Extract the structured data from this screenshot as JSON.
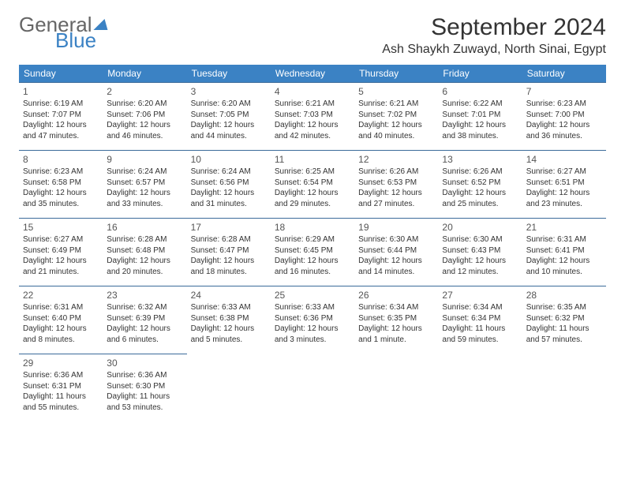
{
  "logo": {
    "line1": "General",
    "line2": "Blue"
  },
  "title": "September 2024",
  "location": "Ash Shaykh Zuwayd, North Sinai, Egypt",
  "colors": {
    "header_bg": "#3b82c4",
    "header_fg": "#ffffff",
    "cell_border": "#3b6b9a",
    "text": "#333333",
    "background": "#ffffff"
  },
  "days_of_week": [
    "Sunday",
    "Monday",
    "Tuesday",
    "Wednesday",
    "Thursday",
    "Friday",
    "Saturday"
  ],
  "calendar": {
    "type": "table",
    "columns": 7,
    "rows": 5,
    "start_offset": 0,
    "days": [
      {
        "n": 1,
        "sunrise": "6:19 AM",
        "sunset": "7:07 PM",
        "daylight": "12 hours and 47 minutes."
      },
      {
        "n": 2,
        "sunrise": "6:20 AM",
        "sunset": "7:06 PM",
        "daylight": "12 hours and 46 minutes."
      },
      {
        "n": 3,
        "sunrise": "6:20 AM",
        "sunset": "7:05 PM",
        "daylight": "12 hours and 44 minutes."
      },
      {
        "n": 4,
        "sunrise": "6:21 AM",
        "sunset": "7:03 PM",
        "daylight": "12 hours and 42 minutes."
      },
      {
        "n": 5,
        "sunrise": "6:21 AM",
        "sunset": "7:02 PM",
        "daylight": "12 hours and 40 minutes."
      },
      {
        "n": 6,
        "sunrise": "6:22 AM",
        "sunset": "7:01 PM",
        "daylight": "12 hours and 38 minutes."
      },
      {
        "n": 7,
        "sunrise": "6:23 AM",
        "sunset": "7:00 PM",
        "daylight": "12 hours and 36 minutes."
      },
      {
        "n": 8,
        "sunrise": "6:23 AM",
        "sunset": "6:58 PM",
        "daylight": "12 hours and 35 minutes."
      },
      {
        "n": 9,
        "sunrise": "6:24 AM",
        "sunset": "6:57 PM",
        "daylight": "12 hours and 33 minutes."
      },
      {
        "n": 10,
        "sunrise": "6:24 AM",
        "sunset": "6:56 PM",
        "daylight": "12 hours and 31 minutes."
      },
      {
        "n": 11,
        "sunrise": "6:25 AM",
        "sunset": "6:54 PM",
        "daylight": "12 hours and 29 minutes."
      },
      {
        "n": 12,
        "sunrise": "6:26 AM",
        "sunset": "6:53 PM",
        "daylight": "12 hours and 27 minutes."
      },
      {
        "n": 13,
        "sunrise": "6:26 AM",
        "sunset": "6:52 PM",
        "daylight": "12 hours and 25 minutes."
      },
      {
        "n": 14,
        "sunrise": "6:27 AM",
        "sunset": "6:51 PM",
        "daylight": "12 hours and 23 minutes."
      },
      {
        "n": 15,
        "sunrise": "6:27 AM",
        "sunset": "6:49 PM",
        "daylight": "12 hours and 21 minutes."
      },
      {
        "n": 16,
        "sunrise": "6:28 AM",
        "sunset": "6:48 PM",
        "daylight": "12 hours and 20 minutes."
      },
      {
        "n": 17,
        "sunrise": "6:28 AM",
        "sunset": "6:47 PM",
        "daylight": "12 hours and 18 minutes."
      },
      {
        "n": 18,
        "sunrise": "6:29 AM",
        "sunset": "6:45 PM",
        "daylight": "12 hours and 16 minutes."
      },
      {
        "n": 19,
        "sunrise": "6:30 AM",
        "sunset": "6:44 PM",
        "daylight": "12 hours and 14 minutes."
      },
      {
        "n": 20,
        "sunrise": "6:30 AM",
        "sunset": "6:43 PM",
        "daylight": "12 hours and 12 minutes."
      },
      {
        "n": 21,
        "sunrise": "6:31 AM",
        "sunset": "6:41 PM",
        "daylight": "12 hours and 10 minutes."
      },
      {
        "n": 22,
        "sunrise": "6:31 AM",
        "sunset": "6:40 PM",
        "daylight": "12 hours and 8 minutes."
      },
      {
        "n": 23,
        "sunrise": "6:32 AM",
        "sunset": "6:39 PM",
        "daylight": "12 hours and 6 minutes."
      },
      {
        "n": 24,
        "sunrise": "6:33 AM",
        "sunset": "6:38 PM",
        "daylight": "12 hours and 5 minutes."
      },
      {
        "n": 25,
        "sunrise": "6:33 AM",
        "sunset": "6:36 PM",
        "daylight": "12 hours and 3 minutes."
      },
      {
        "n": 26,
        "sunrise": "6:34 AM",
        "sunset": "6:35 PM",
        "daylight": "12 hours and 1 minute."
      },
      {
        "n": 27,
        "sunrise": "6:34 AM",
        "sunset": "6:34 PM",
        "daylight": "11 hours and 59 minutes."
      },
      {
        "n": 28,
        "sunrise": "6:35 AM",
        "sunset": "6:32 PM",
        "daylight": "11 hours and 57 minutes."
      },
      {
        "n": 29,
        "sunrise": "6:36 AM",
        "sunset": "6:31 PM",
        "daylight": "11 hours and 55 minutes."
      },
      {
        "n": 30,
        "sunrise": "6:36 AM",
        "sunset": "6:30 PM",
        "daylight": "11 hours and 53 minutes."
      }
    ]
  },
  "labels": {
    "sunrise": "Sunrise:",
    "sunset": "Sunset:",
    "daylight": "Daylight:"
  }
}
